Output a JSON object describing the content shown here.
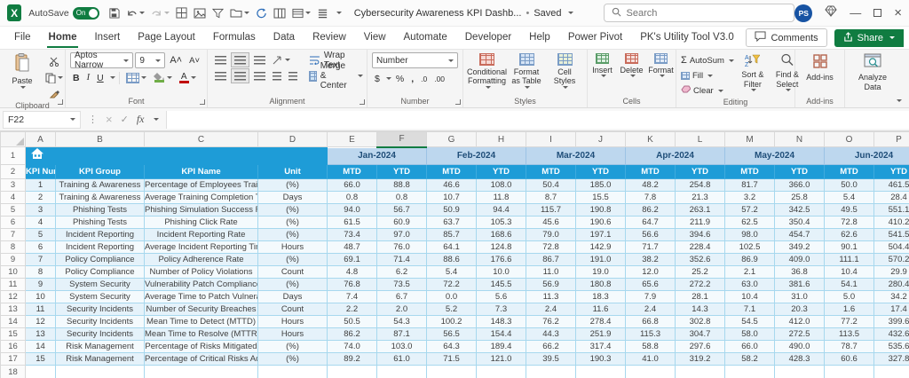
{
  "titlebar": {
    "autosave_label": "AutoSave",
    "autosave_state": "On",
    "title": "Cybersecurity Awareness KPI Dashb...",
    "saved_status": "Saved",
    "search_placeholder": "Search",
    "avatar_initials": "PS"
  },
  "icons": {
    "sigma": "Σ",
    "fx": "fx",
    "check": "✓",
    "cancel": "×",
    "dots": "⋮",
    "bullet": "•",
    "minimize": "—",
    "close": "×"
  },
  "ribbon": {
    "tabs": [
      {
        "label": "File"
      },
      {
        "label": "Home",
        "active": true
      },
      {
        "label": "Insert"
      },
      {
        "label": "Page Layout"
      },
      {
        "label": "Formulas"
      },
      {
        "label": "Data"
      },
      {
        "label": "Review"
      },
      {
        "label": "View"
      },
      {
        "label": "Automate"
      },
      {
        "label": "Developer"
      },
      {
        "label": "Help"
      },
      {
        "label": "Power Pivot"
      },
      {
        "label": "PK's Utility Tool V3.0"
      }
    ],
    "comments_label": "Comments",
    "share_label": "Share",
    "groups": {
      "clipboard": {
        "label": "Clipboard",
        "paste": "Paste"
      },
      "font": {
        "label": "Font",
        "font_name": "Aptos Narrow",
        "font_size": "9",
        "bold": "B",
        "italic": "I",
        "underline": "U"
      },
      "alignment": {
        "label": "Alignment",
        "wrap_text": "Wrap Text",
        "merge_center": "Merge & Center"
      },
      "number": {
        "label": "Number",
        "format": "Number",
        "currency": "$",
        "percent": "%",
        "comma": ",",
        "increase_decimal": ".0",
        "decrease_decimal": ".00"
      },
      "styles": {
        "label": "Styles",
        "conditional": "Conditional Formatting",
        "format_table": "Format as Table",
        "cell_styles": "Cell Styles"
      },
      "cells": {
        "label": "Cells",
        "insert": "Insert",
        "delete": "Delete",
        "format": "Format"
      },
      "editing": {
        "label": "Editing",
        "autosum": "AutoSum",
        "fill": "Fill",
        "clear": "Clear",
        "sort_filter": "Sort & Filter",
        "find_select": "Find & Select"
      },
      "addins": {
        "label": "Add-ins",
        "addins": "Add-ins",
        "analyze": "Analyze Data"
      }
    }
  },
  "formula_bar": {
    "name_box": "F22",
    "formula": ""
  },
  "grid": {
    "columns": [
      "A",
      "B",
      "C",
      "D",
      "E",
      "F",
      "G",
      "H",
      "I",
      "J",
      "K",
      "L",
      "M",
      "N",
      "O",
      "P"
    ],
    "selected_column": "F",
    "months": [
      "Jan-2024",
      "Feb-2024",
      "Mar-2024",
      "Apr-2024",
      "May-2024",
      "Jun-2024"
    ],
    "header_labels": [
      "KPI Number",
      "KPI Group",
      "KPI Name",
      "Unit"
    ],
    "sub_headers": [
      "MTD",
      "YTD"
    ],
    "rows": [
      {
        "n": "1",
        "group": "Training & Awareness",
        "name": "Percentage of Employees Trained",
        "unit": "(%)",
        "values": [
          "66.0",
          "88.8",
          "46.6",
          "108.0",
          "50.4",
          "185.0",
          "48.2",
          "254.8",
          "81.7",
          "366.0",
          "50.0",
          "461.5"
        ]
      },
      {
        "n": "2",
        "group": "Training & Awareness",
        "name": "Average Training Completion Time",
        "unit": "Days",
        "values": [
          "0.8",
          "0.8",
          "10.7",
          "11.8",
          "8.7",
          "15.5",
          "7.8",
          "21.3",
          "3.2",
          "25.8",
          "5.4",
          "28.4"
        ]
      },
      {
        "n": "3",
        "group": "Phishing Tests",
        "name": "Phishing Simulation Success Rate",
        "unit": "(%)",
        "values": [
          "94.0",
          "56.7",
          "50.9",
          "94.4",
          "115.7",
          "190.8",
          "86.2",
          "263.1",
          "57.2",
          "342.5",
          "49.5",
          "551.1"
        ]
      },
      {
        "n": "4",
        "group": "Phishing Tests",
        "name": "Phishing Click Rate",
        "unit": "(%)",
        "values": [
          "61.5",
          "60.9",
          "63.7",
          "105.3",
          "45.6",
          "190.6",
          "64.7",
          "211.9",
          "62.5",
          "350.4",
          "72.8",
          "410.2"
        ]
      },
      {
        "n": "5",
        "group": "Incident Reporting",
        "name": "Incident Reporting Rate",
        "unit": "(%)",
        "values": [
          "73.4",
          "97.0",
          "85.7",
          "168.6",
          "79.0",
          "197.1",
          "56.6",
          "394.6",
          "98.0",
          "454.7",
          "62.6",
          "541.5"
        ]
      },
      {
        "n": "6",
        "group": "Incident Reporting",
        "name": "Average Incident Reporting Time",
        "unit": "Hours",
        "values": [
          "48.7",
          "76.0",
          "64.1",
          "124.8",
          "72.8",
          "142.9",
          "71.7",
          "228.4",
          "102.5",
          "349.2",
          "90.1",
          "504.4"
        ]
      },
      {
        "n": "7",
        "group": "Policy Compliance",
        "name": "Policy Adherence Rate",
        "unit": "(%)",
        "values": [
          "69.1",
          "71.4",
          "88.6",
          "176.6",
          "86.7",
          "191.0",
          "38.2",
          "352.6",
          "86.9",
          "409.0",
          "111.1",
          "570.2"
        ]
      },
      {
        "n": "8",
        "group": "Policy Compliance",
        "name": "Number of Policy Violations",
        "unit": "Count",
        "values": [
          "4.8",
          "6.2",
          "5.4",
          "10.0",
          "11.0",
          "19.0",
          "12.0",
          "25.2",
          "2.1",
          "36.8",
          "10.4",
          "29.9"
        ]
      },
      {
        "n": "9",
        "group": "System Security",
        "name": "Vulnerability Patch Compliance Rate",
        "unit": "(%)",
        "values": [
          "76.8",
          "73.5",
          "72.2",
          "145.5",
          "56.9",
          "180.8",
          "65.6",
          "272.2",
          "63.0",
          "381.6",
          "54.1",
          "280.4"
        ]
      },
      {
        "n": "10",
        "group": "System Security",
        "name": "Average Time to Patch Vulnerabilities",
        "unit": "Days",
        "values": [
          "7.4",
          "6.7",
          "0.0",
          "5.6",
          "11.3",
          "18.3",
          "7.9",
          "28.1",
          "10.4",
          "31.0",
          "5.0",
          "34.2"
        ]
      },
      {
        "n": "11",
        "group": "Security Incidents",
        "name": "Number of Security Breaches",
        "unit": "Count",
        "values": [
          "2.2",
          "2.0",
          "5.2",
          "7.3",
          "2.4",
          "11.6",
          "2.4",
          "14.3",
          "7.1",
          "20.3",
          "1.6",
          "17.4"
        ]
      },
      {
        "n": "12",
        "group": "Security Incidents",
        "name": "Mean Time to Detect (MTTD)",
        "unit": "Hours",
        "values": [
          "50.5",
          "54.3",
          "100.2",
          "148.3",
          "76.2",
          "278.4",
          "66.8",
          "302.8",
          "54.5",
          "412.0",
          "77.2",
          "399.6"
        ]
      },
      {
        "n": "13",
        "group": "Security Incidents",
        "name": "Mean Time to Resolve (MTTR)",
        "unit": "Hours",
        "values": [
          "86.2",
          "87.1",
          "56.5",
          "154.4",
          "44.3",
          "251.9",
          "115.3",
          "304.7",
          "58.0",
          "272.5",
          "113.5",
          "432.6"
        ]
      },
      {
        "n": "14",
        "group": "Risk Management",
        "name": "Percentage of Risks Mitigated",
        "unit": "(%)",
        "values": [
          "74.0",
          "103.0",
          "64.3",
          "189.4",
          "66.2",
          "317.4",
          "58.8",
          "297.6",
          "66.0",
          "490.0",
          "78.7",
          "535.6"
        ]
      },
      {
        "n": "15",
        "group": "Risk Management",
        "name": "Percentage of Critical Risks Addressed",
        "unit": "(%)",
        "values": [
          "89.2",
          "61.0",
          "71.5",
          "121.0",
          "39.5",
          "190.3",
          "41.0",
          "319.2",
          "58.2",
          "428.3",
          "60.6",
          "327.8"
        ]
      }
    ]
  }
}
